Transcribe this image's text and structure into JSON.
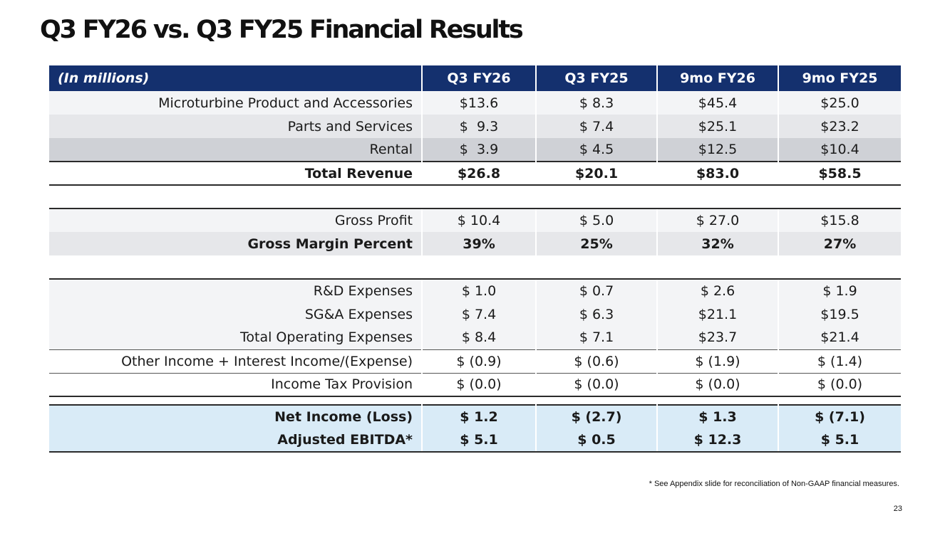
{
  "title": "Q3 FY26 vs. Q3 FY25 Financial Results",
  "table": {
    "header": [
      "(In millions)",
      "Q3 FY26",
      "Q3 FY25",
      "9mo FY26",
      "9mo FY25"
    ],
    "rows": [
      {
        "label": "Microturbine Product and Accessories",
        "values": [
          "$13.6",
          "$ 8.3",
          "$45.4",
          "$25.0"
        ]
      },
      {
        "label": "Parts and Services",
        "values": [
          "$  9.3",
          "$ 7.4",
          "$25.1",
          "$23.2"
        ]
      },
      {
        "label": "Rental",
        "values": [
          "$  3.9",
          "$ 4.5",
          "$12.5",
          "$10.4"
        ]
      },
      {
        "label": "Total Revenue",
        "values": [
          "$26.8",
          "$20.1",
          "$83.0",
          "$58.5"
        ]
      },
      {
        "label": "Gross Profit",
        "values": [
          "$ 10.4",
          "$ 5.0",
          "$ 27.0",
          "$15.8"
        ]
      },
      {
        "label": "Gross Margin Percent",
        "values": [
          "39%",
          "25%",
          "32%",
          "27%"
        ]
      },
      {
        "label": "R&D Expenses",
        "values": [
          "$ 1.0",
          "$ 0.7",
          "$ 2.6",
          "$ 1.9"
        ]
      },
      {
        "label": "SG&A Expenses",
        "values": [
          "$ 7.4",
          "$ 6.3",
          "$21.1",
          "$19.5"
        ]
      },
      {
        "label": "Total Operating Expenses",
        "values": [
          "$ 8.4",
          "$ 7.1",
          "$23.7",
          "$21.4"
        ]
      },
      {
        "label": "Other Income + Interest Income/(Expense)",
        "values": [
          "$ (0.9)",
          "$ (0.6)",
          "$ (1.9)",
          "$ (1.4)"
        ]
      },
      {
        "label": "Income Tax Provision",
        "values": [
          "$ (0.0)",
          "$ (0.0)",
          "$ (0.0)",
          "$ (0.0)"
        ]
      },
      {
        "label": "Net Income (Loss)",
        "values": [
          "$ 1.2",
          "$ (2.7)",
          "$ 1.3",
          "$ (7.1)"
        ]
      },
      {
        "label": "Adjusted EBITDA*",
        "values": [
          "$ 5.1",
          "$ 0.5",
          "$ 12.3",
          "$ 5.1"
        ]
      }
    ]
  },
  "footnote": "* See Appendix slide for reconciliation of Non-GAAP financial measures.",
  "page_number": "23",
  "colors": {
    "header_bg": "#14306e",
    "highlight_row_bg": "#d9ebf7"
  }
}
